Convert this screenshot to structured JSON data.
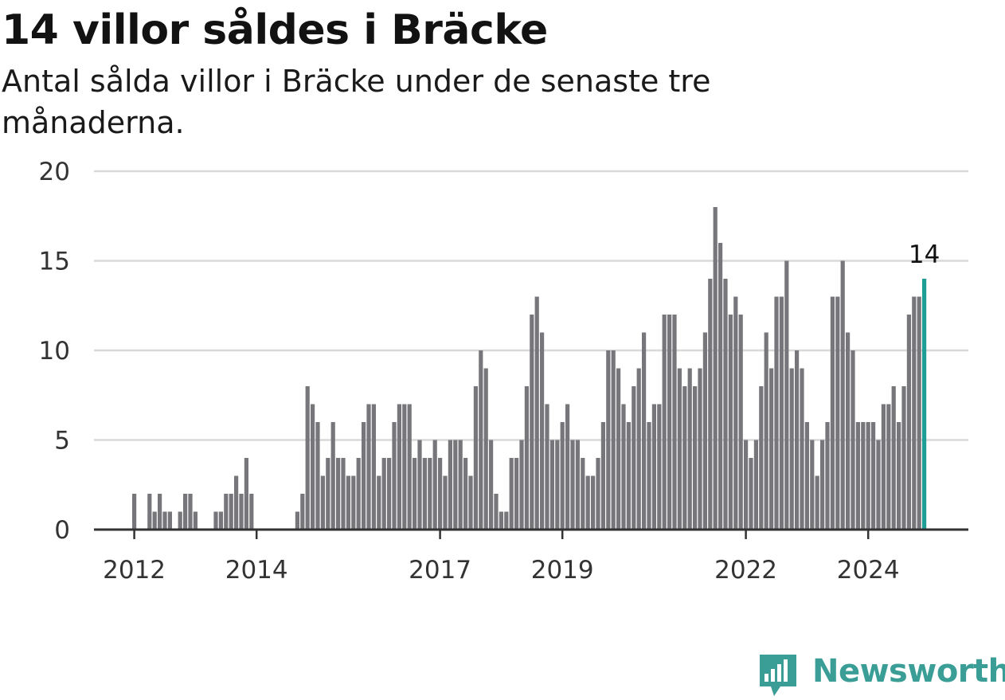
{
  "chart_data": {
    "type": "bar",
    "title": "14 villor såldes i Bräcke",
    "subtitle": "Antal sålda villor i Bräcke under de senaste tre månaderna.",
    "ylim": [
      0,
      20
    ],
    "yticks": [
      0,
      5,
      10,
      15,
      20
    ],
    "xticks": [
      "2012",
      "2014",
      "2017",
      "2019",
      "2022",
      "2024"
    ],
    "grid": true,
    "bar_color": "#77767a",
    "highlight_color": "#1f9e96",
    "highlight_label": "14",
    "series": [
      {
        "values": [
          2,
          0,
          0,
          2,
          1,
          2,
          1,
          1,
          0,
          1,
          2,
          2,
          1,
          0,
          0,
          0,
          1,
          1,
          2,
          2,
          3,
          2,
          4,
          2,
          0,
          0,
          0,
          0,
          0,
          0,
          0,
          0,
          1,
          2,
          8,
          7,
          6,
          3,
          4,
          6,
          4,
          4,
          3,
          3,
          4,
          6,
          7,
          7,
          3,
          4,
          4,
          6,
          7,
          7,
          7,
          4,
          5,
          4,
          4,
          5,
          4,
          3,
          5,
          5,
          5,
          4,
          3,
          8,
          10,
          9,
          5,
          2,
          1,
          1,
          4,
          4,
          5,
          8,
          12,
          13,
          11,
          7,
          5,
          5,
          6,
          7,
          5,
          5,
          4,
          3,
          3,
          4,
          6,
          10,
          10,
          9,
          7,
          6,
          8,
          9,
          11,
          6,
          7,
          7,
          12,
          12,
          12,
          9,
          8,
          9,
          8,
          9,
          11,
          14,
          18,
          16,
          14,
          12,
          13,
          12,
          5,
          4,
          5,
          8,
          11,
          9,
          13,
          13,
          15,
          9,
          10,
          9,
          6,
          5,
          3,
          5,
          6,
          13,
          13,
          15,
          11,
          10,
          6,
          6,
          6,
          6,
          5,
          7,
          7,
          8,
          6,
          8,
          12,
          13,
          13,
          14
        ]
      }
    ]
  },
  "brand": {
    "name": "Newsworthy"
  }
}
